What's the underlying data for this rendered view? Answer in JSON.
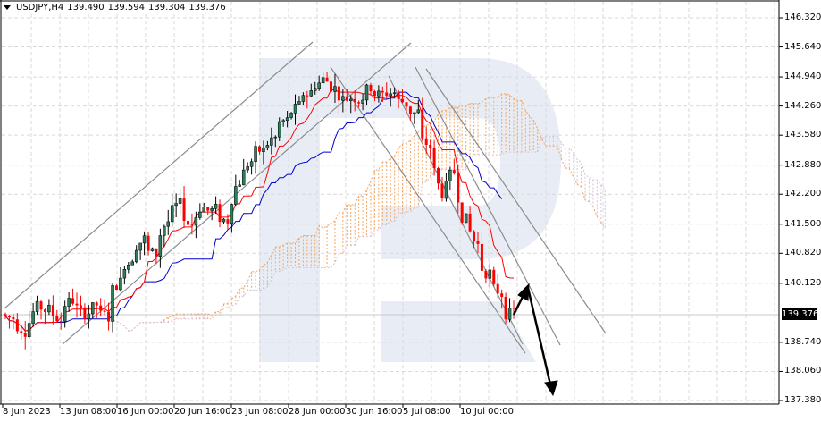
{
  "header": {
    "symbol": "USDJPY,H4",
    "open": "139.490",
    "high": "139.594",
    "low": "139.304",
    "close": "139.376"
  },
  "current_price": "139.376",
  "colors": {
    "bull_candle": "#2e7d5b",
    "bear_candle": "#ff0000",
    "tenkan": "#ff0000",
    "kijun": "#0000cc",
    "cloud_a": "#f4a460",
    "cloud_b": "#d8bfd8",
    "trendline": "#808080",
    "arrow": "#000000",
    "grid": "#d9d9d9",
    "watermark": "#e8edf5"
  },
  "chart_data": {
    "type": "candlestick",
    "title": "USDJPY,H4",
    "timeframe": "H4",
    "ohlc_header": {
      "open": 139.49,
      "high": 139.594,
      "low": 139.304,
      "close": 139.376
    },
    "yaxis": {
      "ticks": [
        "146.320",
        "145.640",
        "144.940",
        "144.260",
        "143.580",
        "142.880",
        "142.200",
        "141.500",
        "140.820",
        "140.120",
        "139.376",
        "138.740",
        "138.060",
        "137.380"
      ],
      "range": [
        137.38,
        146.32
      ],
      "current_price_label": "139.376"
    },
    "xaxis": {
      "ticks": [
        "8 Jun 2023",
        "13 Jun 08:00",
        "16 Jun 00:00",
        "20 Jun 16:00",
        "23 Jun 08:00",
        "28 Jun 00:00",
        "30 Jun 16:00",
        "5 Jul 08:00",
        "10 Jul 00:00"
      ]
    },
    "indicators": [
      "Ichimoku Tenkan-sen (red)",
      "Ichimoku Kijun-sen (blue)",
      "Ichimoku Cloud (Senkou Span A/B, dotted)"
    ],
    "annotations": [
      "Ascending channel (8 Jun - 30 Jun)",
      "Descending channel lines (28 Jun - 12 Jul)",
      "Forecast arrow up to ~140.10",
      "Forecast arrow down to ~137.50"
    ],
    "approx_closes": [
      139.3,
      139.1,
      139.6,
      139.5,
      139.3,
      139.7,
      139.4,
      139.6,
      139.2,
      140.2,
      140.8,
      141.2,
      140.7,
      141.6,
      141.9,
      141.5,
      142.0,
      141.8,
      141.6,
      142.6,
      143.0,
      143.2,
      143.5,
      143.9,
      144.2,
      144.6,
      144.9,
      144.7,
      144.4,
      144.5,
      144.7,
      144.5,
      144.6,
      144.3,
      144.1,
      143.3,
      142.1,
      142.7,
      141.6,
      140.9,
      140.4,
      139.9,
      139.4
    ]
  }
}
